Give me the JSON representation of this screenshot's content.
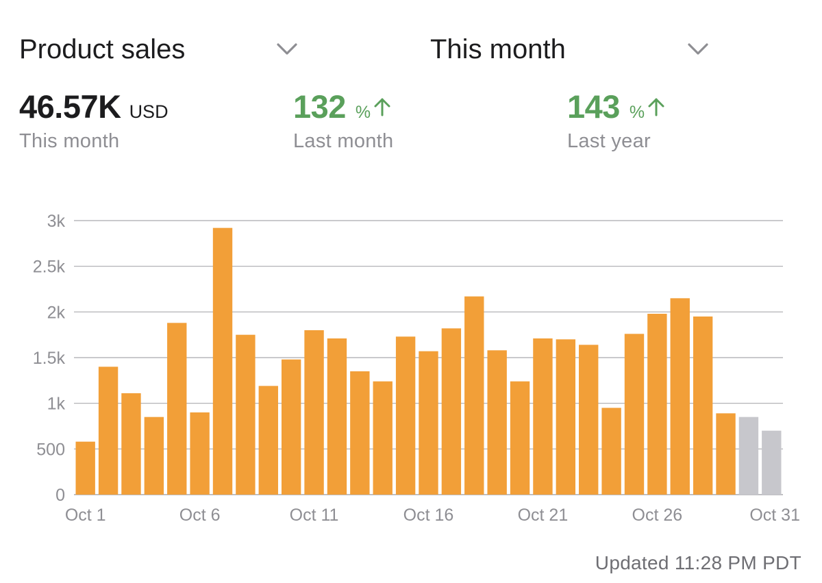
{
  "header": {
    "metric_dropdown": {
      "label": "Product sales",
      "icon": "chevron-down-icon"
    },
    "period_dropdown": {
      "label": "This month",
      "icon": "chevron-down-icon"
    }
  },
  "stats": {
    "total": {
      "value": "46.57K",
      "unit": "USD",
      "caption": "This month"
    },
    "vs_last_month": {
      "value": "132",
      "unit": "%",
      "icon": "arrow-up-icon",
      "caption": "Last month"
    },
    "vs_last_year": {
      "value": "143",
      "unit": "%",
      "icon": "arrow-up-icon",
      "caption": "Last year"
    }
  },
  "colors": {
    "bar": "#f29f38",
    "bar_pending": "#c7c7cc",
    "positive": "#5aa05b",
    "grid": "#a9a9ae",
    "muted_text": "#8e8e93"
  },
  "chart_data": {
    "type": "bar",
    "categories": [
      "Oct 1",
      "Oct 2",
      "Oct 3",
      "Oct 4",
      "Oct 5",
      "Oct 6",
      "Oct 7",
      "Oct 8",
      "Oct 9",
      "Oct 10",
      "Oct 11",
      "Oct 12",
      "Oct 13",
      "Oct 14",
      "Oct 15",
      "Oct 16",
      "Oct 17",
      "Oct 18",
      "Oct 19",
      "Oct 20",
      "Oct 21",
      "Oct 22",
      "Oct 23",
      "Oct 24",
      "Oct 25",
      "Oct 26",
      "Oct 27",
      "Oct 28",
      "Oct 29",
      "Oct 30",
      "Oct 31"
    ],
    "values": [
      580,
      1400,
      1110,
      850,
      1880,
      900,
      2920,
      1750,
      1190,
      1480,
      1800,
      1710,
      1350,
      1240,
      1730,
      1570,
      1820,
      2170,
      1580,
      1240,
      1710,
      1700,
      1640,
      950,
      1760,
      1980,
      2150,
      1950,
      890,
      850,
      700
    ],
    "pending": [
      false,
      false,
      false,
      false,
      false,
      false,
      false,
      false,
      false,
      false,
      false,
      false,
      false,
      false,
      false,
      false,
      false,
      false,
      false,
      false,
      false,
      false,
      false,
      false,
      false,
      false,
      false,
      false,
      false,
      true,
      true
    ],
    "x_tick_labels": [
      "Oct 1",
      "Oct 6",
      "Oct 11",
      "Oct 16",
      "Oct 21",
      "Oct 26",
      "Oct 31"
    ],
    "y_ticks": [
      0,
      500,
      1000,
      1500,
      2000,
      2500,
      3000
    ],
    "y_tick_labels": [
      "0",
      "500",
      "1k",
      "1.5k",
      "2k",
      "2.5k",
      "3k"
    ],
    "ylim": [
      0,
      3000
    ],
    "grid": true,
    "title": "",
    "xlabel": "",
    "ylabel": ""
  },
  "footer": {
    "updated": "Updated 11:28 PM PDT"
  }
}
